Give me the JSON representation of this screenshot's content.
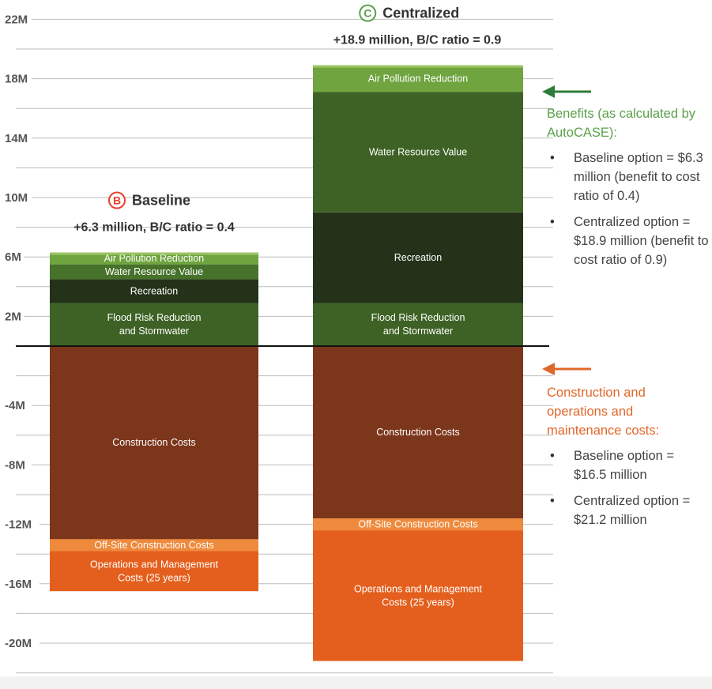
{
  "chart_data": {
    "type": "bar",
    "stacked": true,
    "ylim": [
      -22,
      22
    ],
    "yticks": [
      {
        "value": 22,
        "label": "22M"
      },
      {
        "value": 18,
        "label": "18M"
      },
      {
        "value": 14,
        "label": "14M"
      },
      {
        "value": 10,
        "label": "10M"
      },
      {
        "value": 6,
        "label": "6M"
      },
      {
        "value": 2,
        "label": "2M"
      },
      {
        "value": -4,
        "label": "-4M"
      },
      {
        "value": -8,
        "label": "-8M"
      },
      {
        "value": -12,
        "label": "-12M"
      },
      {
        "value": -16,
        "label": "-16M"
      },
      {
        "value": -20,
        "label": "-20M"
      }
    ],
    "grid": true,
    "categories": [
      {
        "name": "Baseline",
        "badge": "B",
        "badge_color": "#e8412c",
        "subtitle": "+6.3 million, B/C ratio = 0.4",
        "segments": [
          {
            "label": "Flood Risk Reduction\nand Stormwater",
            "from": 0,
            "to": 2.9,
            "color": "#3e6225"
          },
          {
            "label": "Recreation",
            "from": 2.9,
            "to": 4.5,
            "color": "#24321a"
          },
          {
            "label": "Water Resource Value",
            "from": 4.5,
            "to": 5.5,
            "color": "#47722b"
          },
          {
            "label": "Air Pollution Reduction",
            "from": 5.5,
            "to": 6.3,
            "color": "#6fa43f"
          },
          {
            "label": "Construction Costs",
            "from": 0,
            "to": -13.0,
            "color": "#7c361b"
          },
          {
            "label": "Off-Site Construction Costs",
            "from": -13.0,
            "to": -13.8,
            "color": "#ef8a3c"
          },
          {
            "label": "Operations and Management\nCosts (25 years)",
            "from": -13.8,
            "to": -16.5,
            "color": "#e45f1d"
          }
        ]
      },
      {
        "name": "Centralized",
        "badge": "C",
        "badge_color": "#5aa14a",
        "subtitle": "+18.9 million, B/C ratio = 0.9",
        "segments": [
          {
            "label": "Flood Risk Reduction\nand Stormwater",
            "from": 0,
            "to": 2.9,
            "color": "#3e6225"
          },
          {
            "label": "Recreation",
            "from": 2.9,
            "to": 9.0,
            "color": "#24321a"
          },
          {
            "label": "Water Resource Value",
            "from": 9.0,
            "to": 17.1,
            "color": "#3e6225"
          },
          {
            "label": "Air Pollution Reduction",
            "from": 17.1,
            "to": 18.9,
            "color": "#6fa43f"
          },
          {
            "label": "Construction Costs",
            "from": 0,
            "to": -11.6,
            "color": "#7c361b"
          },
          {
            "label": "Off-Site Construction Costs",
            "from": -11.6,
            "to": -12.4,
            "color": "#ef8a3c"
          },
          {
            "label": "Operations and Management\nCosts (25 years)",
            "from": -12.4,
            "to": -21.2,
            "color": "#e45f1d"
          }
        ]
      }
    ]
  },
  "annotations": {
    "benefits": {
      "heading": "Benefits (as calculated by AutoCASE):",
      "color": "#2e7d3a",
      "items": [
        "Baseline option = $6.3 million (benefit to cost ratio of 0.4)",
        "Centralized option = $18.9 million (benefit to cost ratio of 0.9)"
      ]
    },
    "costs": {
      "heading": "Construction and operations and maintenance costs:",
      "color": "#e0672a",
      "items": [
        "Baseline option = $16.5 million",
        "Centralized option = $21.2 million"
      ]
    }
  }
}
